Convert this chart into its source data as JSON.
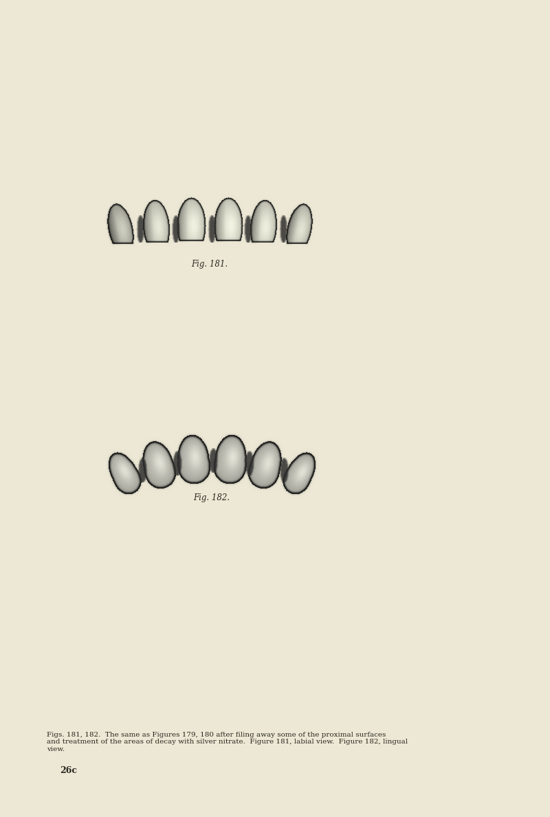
{
  "bg_color": "#ede8d5",
  "fig_width": 8.0,
  "fig_height": 11.89,
  "caption181": "Fig. 181.",
  "caption182": "Fig. 182.",
  "footer_text": "Figs. 181, 182.  The same as Figures 179, 180 after filing away some of the proximal surfaces\nand treatment of the areas of decay with silver nitrate.  Figure 181, labial view.  Figure 182, lingual\nview.",
  "page_num": "26c",
  "tooth_base": 210,
  "tooth_light": 230,
  "tooth_dark": 120,
  "tooth_darkest": 55,
  "tooth_shadow": 160
}
